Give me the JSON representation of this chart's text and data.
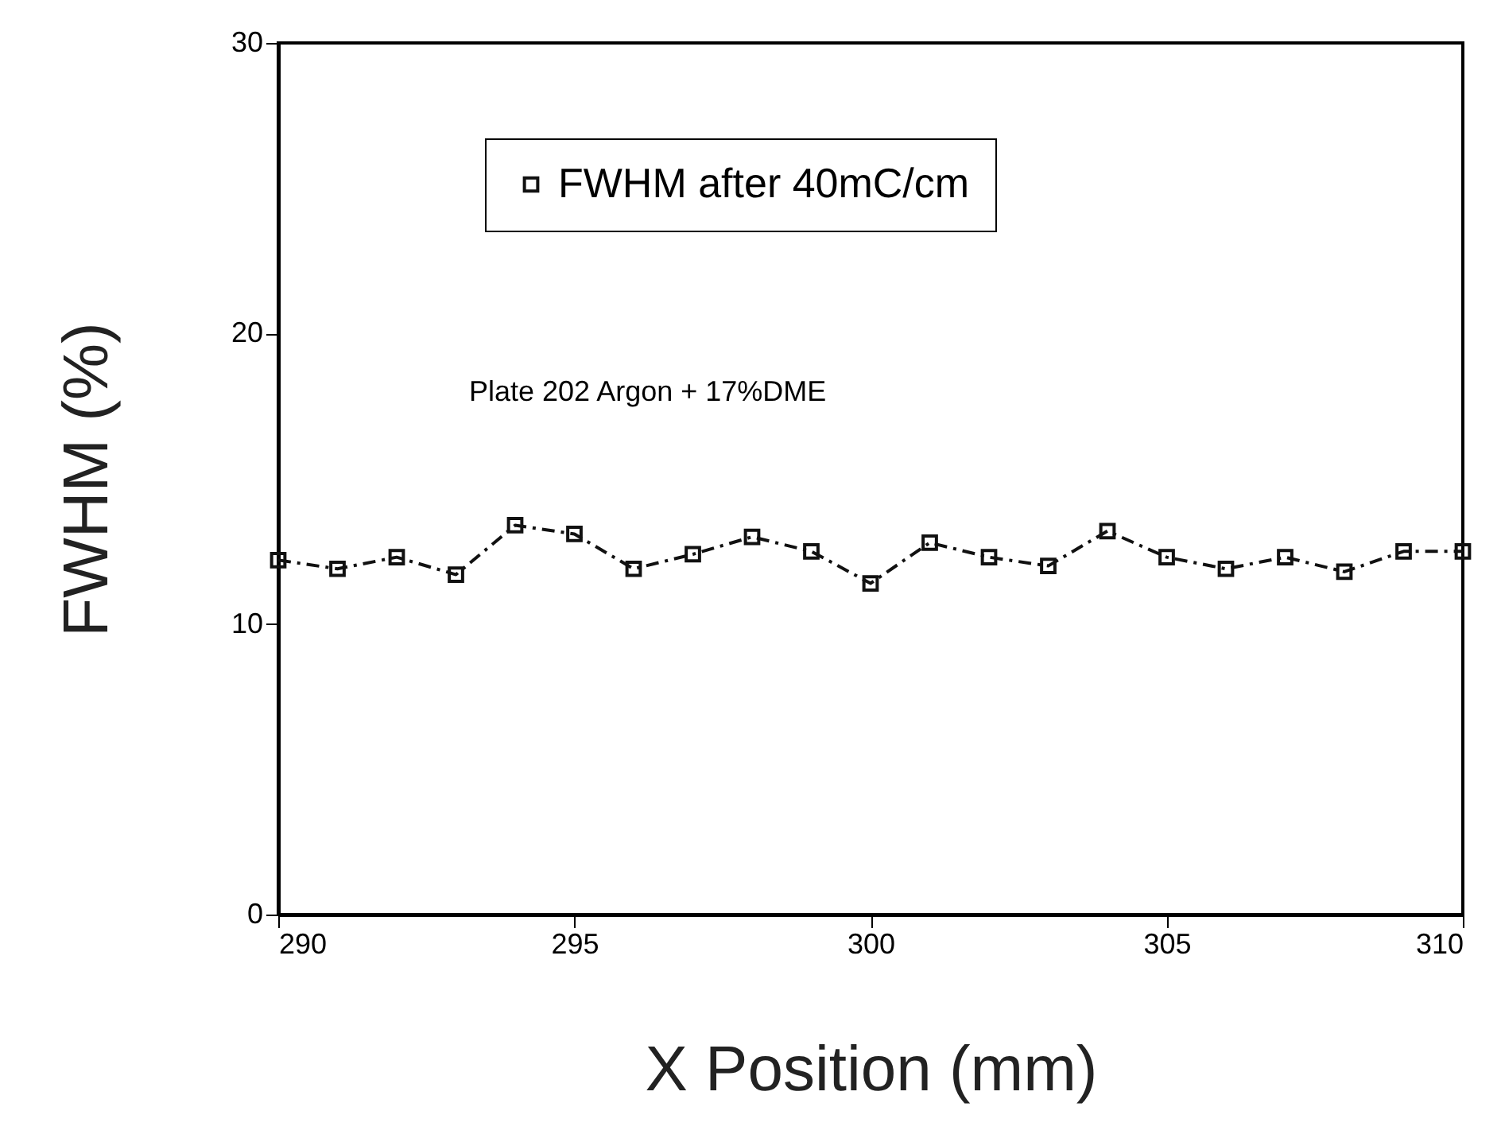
{
  "chart_data": {
    "type": "line",
    "xlabel": "X Position (mm)",
    "ylabel": "FWHM (%)",
    "x": [
      290,
      291,
      292,
      293,
      294,
      295,
      296,
      297,
      298,
      299,
      300,
      301,
      302,
      303,
      304,
      305,
      306,
      307,
      308,
      309,
      310
    ],
    "series": [
      {
        "name": "FWHM after 40mC/cm",
        "color": "#111111",
        "values": [
          12.2,
          11.9,
          12.3,
          11.7,
          13.4,
          13.1,
          11.9,
          12.4,
          13.0,
          12.5,
          11.4,
          12.8,
          12.3,
          12.0,
          13.2,
          12.3,
          11.9,
          12.3,
          11.8,
          12.5,
          12.5
        ]
      }
    ],
    "xlim": [
      290,
      310
    ],
    "xticks": [
      290,
      295,
      300,
      305,
      310
    ],
    "ylim": [
      0,
      30
    ],
    "yticks": [
      0,
      10,
      20,
      30
    ],
    "annotations": [
      "Plate 202  Argon + 17%DME"
    ],
    "legend": "top",
    "marker": "square",
    "line_style": "dashed",
    "grid": false
  }
}
